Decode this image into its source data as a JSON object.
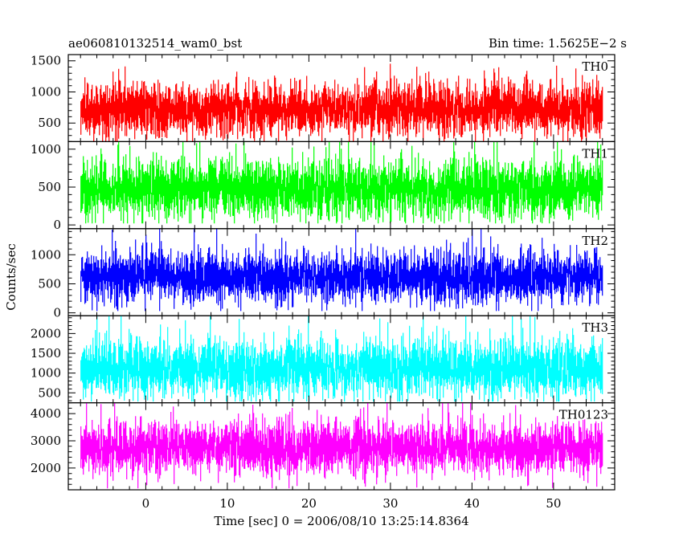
{
  "chart_data": {
    "type": "line",
    "title_left": "ae060810132514_wam0_bst",
    "title_right": "Bin time: 1.5625E−2 s",
    "ylabel": "Counts/sec",
    "xlabel": "Time [sec] 0 = 2006/08/10 13:25:14.8364",
    "xlim": [
      -9.5,
      57.5
    ],
    "x_data_range": [
      -8.0,
      56.0
    ],
    "x_ticks": [
      0,
      10,
      20,
      30,
      40,
      50
    ],
    "x_minor_step": 2,
    "panels": [
      {
        "label": "TH0",
        "color": "#ff0000",
        "ylim": [
          200,
          1600
        ],
        "y_ticks": [
          500,
          1000,
          1500
        ],
        "y_minor_step": 100,
        "signal": {
          "mean": 720,
          "sd": 210,
          "min": 180,
          "max": 1650,
          "bins": 4096
        }
      },
      {
        "label": "TH1",
        "color": "#00ff00",
        "ylim": [
          -50,
          1100
        ],
        "y_ticks": [
          0,
          500,
          1000
        ],
        "y_minor_step": 100,
        "signal": {
          "mean": 470,
          "sd": 190,
          "min": 20,
          "max": 1130,
          "bins": 4096
        }
      },
      {
        "label": "TH2",
        "color": "#0000ff",
        "ylim": [
          -50,
          1450
        ],
        "y_ticks": [
          0,
          500,
          1000
        ],
        "y_minor_step": 100,
        "signal": {
          "mean": 620,
          "sd": 220,
          "min": 30,
          "max": 1480,
          "bins": 4096
        }
      },
      {
        "label": "TH3",
        "color": "#00ffff",
        "ylim": [
          250,
          2450
        ],
        "y_ticks": [
          500,
          1000,
          1500,
          2000
        ],
        "y_minor_step": 100,
        "signal": {
          "mean": 1120,
          "sd": 360,
          "min": 280,
          "max": 2500,
          "bins": 4096
        }
      },
      {
        "label": "TH0123",
        "color": "#ff00ff",
        "ylim": [
          1200,
          4400
        ],
        "y_ticks": [
          2000,
          3000,
          4000
        ],
        "y_minor_step": 200,
        "signal": {
          "mean": 2750,
          "sd": 470,
          "min": 1250,
          "max": 4450,
          "bins": 4096
        }
      }
    ]
  }
}
